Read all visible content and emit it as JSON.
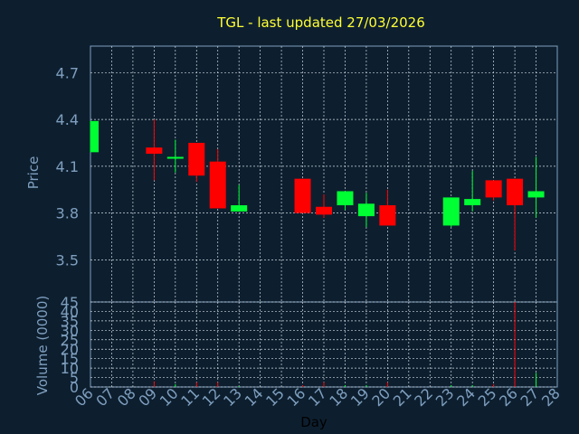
{
  "chart_data": {
    "type": "candlestick",
    "title": "TGL - last updated 27/03/2026",
    "xlabel": "Day",
    "price_panel": {
      "ylabel": "Price",
      "ylim": [
        3.23,
        4.87
      ],
      "yticks": [
        "3.5",
        "3.8",
        "4.1",
        "4.4",
        "4.7"
      ],
      "grid": true
    },
    "volume_panel": {
      "ylabel": "Volume (0000)",
      "ylim": [
        0,
        45
      ],
      "yticks": [
        "0",
        "5",
        "10",
        "15",
        "20",
        "25",
        "30",
        "35",
        "40",
        "45"
      ],
      "grid": true
    },
    "x_ticks": [
      "06",
      "07",
      "08",
      "09",
      "10",
      "11",
      "12",
      "13",
      "14",
      "15",
      "16",
      "17",
      "18",
      "19",
      "20",
      "21",
      "22",
      "23",
      "24",
      "25",
      "26",
      "27",
      "28"
    ],
    "candles": [
      {
        "day": 6,
        "open": 4.19,
        "close": 4.39,
        "high": 4.39,
        "low": 4.19,
        "volume": 0.0
      },
      {
        "day": 9,
        "open": 4.22,
        "close": 4.18,
        "high": 4.4,
        "low": 4.01,
        "volume": 3.0
      },
      {
        "day": 10,
        "open": 4.15,
        "close": 4.16,
        "high": 4.27,
        "low": 4.06,
        "volume": 1.5
      },
      {
        "day": 11,
        "open": 4.25,
        "close": 4.04,
        "high": 4.25,
        "low": 4.0,
        "volume": 2.5
      },
      {
        "day": 12,
        "open": 4.13,
        "close": 3.83,
        "high": 4.21,
        "low": 3.83,
        "volume": 2.5
      },
      {
        "day": 13,
        "open": 3.81,
        "close": 3.85,
        "high": 3.98,
        "low": 3.81,
        "volume": 0.5
      },
      {
        "day": 16,
        "open": 4.02,
        "close": 3.8,
        "high": 4.02,
        "low": 3.8,
        "volume": 1.0
      },
      {
        "day": 17,
        "open": 3.84,
        "close": 3.79,
        "high": 3.92,
        "low": 3.77,
        "volume": 2.5
      },
      {
        "day": 18,
        "open": 3.85,
        "close": 3.94,
        "high": 3.94,
        "low": 3.82,
        "volume": 1.0
      },
      {
        "day": 19,
        "open": 3.78,
        "close": 3.86,
        "high": 3.93,
        "low": 3.71,
        "volume": 1.0
      },
      {
        "day": 20,
        "open": 3.85,
        "close": 3.72,
        "high": 3.95,
        "low": 3.72,
        "volume": 2.5
      },
      {
        "day": 23,
        "open": 3.72,
        "close": 3.9,
        "high": 3.9,
        "low": 3.71,
        "volume": 1.0
      },
      {
        "day": 24,
        "open": 3.85,
        "close": 3.89,
        "high": 4.07,
        "low": 3.81,
        "volume": 1.0
      },
      {
        "day": 25,
        "open": 4.01,
        "close": 3.9,
        "high": 4.01,
        "low": 3.88,
        "volume": 1.5
      },
      {
        "day": 26,
        "open": 4.02,
        "close": 3.85,
        "high": 4.02,
        "low": 3.56,
        "volume": 45.0
      },
      {
        "day": 27,
        "open": 3.9,
        "close": 3.94,
        "high": 4.16,
        "low": 3.77,
        "volume": 7.5
      }
    ],
    "colors": {
      "background": "#0d1f2f",
      "plot_border": "#7f9fbf",
      "grid": "#d0d8e0",
      "up": "#00ff33",
      "down": "#ff0000",
      "title": "#ffff33",
      "axis_text": "#7f9fbf",
      "day_label": "#000000"
    }
  }
}
